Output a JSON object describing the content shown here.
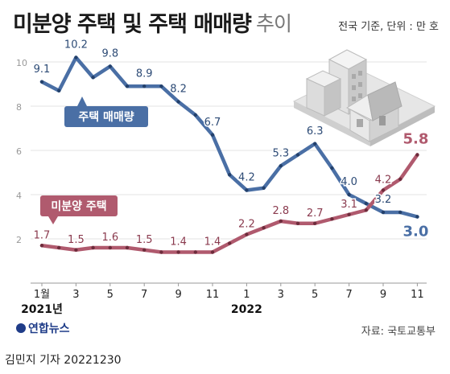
{
  "title": "미분양 주택 및 주택 매매량",
  "title_suffix": "추이",
  "unit_note": "전국 기준, 단위 : 만 호",
  "source": "자료: 국토교통부",
  "logo_text": "연합뉴스",
  "byline": "김민지 기자  20221230",
  "chart_data": {
    "type": "line",
    "ylim": [
      0,
      10.5
    ],
    "y_ticks": [
      0,
      2,
      4,
      6,
      8,
      10
    ],
    "x_tick_labels": [
      "1월",
      "3",
      "5",
      "7",
      "9",
      "11",
      "1",
      "3",
      "5",
      "7",
      "9",
      "11"
    ],
    "x_tick_months": [
      1,
      3,
      5,
      7,
      9,
      11,
      13,
      15,
      17,
      19,
      21,
      23
    ],
    "year_labels": [
      {
        "text": "2021년",
        "month": 1
      },
      {
        "text": "2022",
        "month": 13
      }
    ],
    "series": [
      {
        "name": "주택 매매량",
        "color": "#4a6fa5",
        "values": [
          9.1,
          8.7,
          10.2,
          9.3,
          9.8,
          8.9,
          8.9,
          8.9,
          8.2,
          7.6,
          6.7,
          4.9,
          4.2,
          4.3,
          5.3,
          5.8,
          6.3,
          5.2,
          4.0,
          3.6,
          3.2,
          3.2,
          3.0
        ],
        "data_labels": [
          {
            "index": 0,
            "text": "9.1"
          },
          {
            "index": 2,
            "text": "10.2"
          },
          {
            "index": 4,
            "text": "9.8"
          },
          {
            "index": 6,
            "text": "8.9"
          },
          {
            "index": 8,
            "text": "8.2"
          },
          {
            "index": 10,
            "text": "6.7"
          },
          {
            "index": 12,
            "text": "4.2"
          },
          {
            "index": 14,
            "text": "5.3"
          },
          {
            "index": 16,
            "text": "6.3"
          },
          {
            "index": 18,
            "text": "4.0"
          },
          {
            "index": 20,
            "text": "3.2"
          },
          {
            "index": 22,
            "text": "3.0"
          }
        ]
      },
      {
        "name": "미분양 주택",
        "color": "#b05a6e",
        "values": [
          1.7,
          1.6,
          1.5,
          1.6,
          1.6,
          1.6,
          1.5,
          1.4,
          1.4,
          1.4,
          1.4,
          1.8,
          2.2,
          2.5,
          2.8,
          2.7,
          2.7,
          2.9,
          3.1,
          3.3,
          4.2,
          4.7,
          5.8
        ],
        "data_labels": [
          {
            "index": 0,
            "text": "1.7"
          },
          {
            "index": 2,
            "text": "1.5"
          },
          {
            "index": 4,
            "text": "1.6"
          },
          {
            "index": 6,
            "text": "1.5"
          },
          {
            "index": 8,
            "text": "1.4"
          },
          {
            "index": 10,
            "text": "1.4"
          },
          {
            "index": 12,
            "text": "2.2"
          },
          {
            "index": 14,
            "text": "2.8"
          },
          {
            "index": 16,
            "text": "2.7"
          },
          {
            "index": 18,
            "text": "3.1"
          },
          {
            "index": 20,
            "text": "4.2"
          },
          {
            "index": 22,
            "text": "5.8"
          }
        ]
      }
    ]
  }
}
